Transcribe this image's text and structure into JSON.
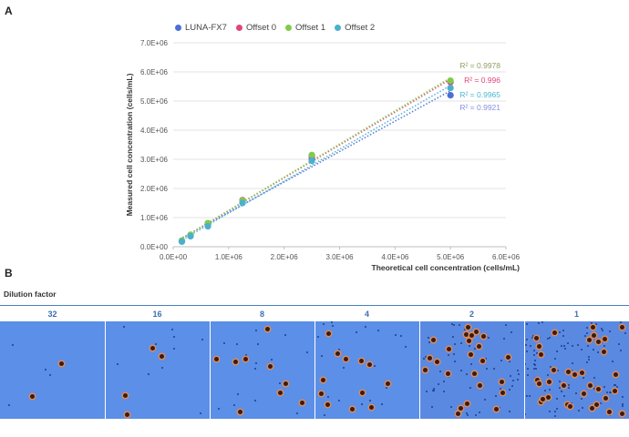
{
  "panel_a_label": "A",
  "panel_b_label": "B",
  "chart_data": {
    "type": "scatter",
    "xlabel": "Theoretical cell  concentration (cells/mL)",
    "ylabel": "Measured cell concentration (cells/mL)",
    "xlim": [
      0,
      6000000
    ],
    "ylim": [
      0,
      7000000
    ],
    "x_ticks": [
      "0.0E+00",
      "1.0E+06",
      "2.0E+06",
      "3.0E+06",
      "4.0E+06",
      "5.0E+06",
      "6.0E+06"
    ],
    "y_ticks": [
      "0.0E+00",
      "1.0E+06",
      "2.0E+06",
      "3.0E+06",
      "4.0E+06",
      "5.0E+06",
      "6.0E+06",
      "7.0E+06"
    ],
    "grid": true,
    "legend_position": "top",
    "series": [
      {
        "name": "LUNA-FX7",
        "color": "#4a6fd8",
        "x": [
          156250,
          312500,
          625000,
          1250000,
          2500000,
          5000000
        ],
        "y": [
          185000,
          370000,
          760000,
          1550000,
          3020000,
          5200000
        ],
        "r2": "R² = 0.9921",
        "r2_color": "#8a8fe0"
      },
      {
        "name": "Offset 0",
        "color": "#e0457b",
        "x": [
          156250,
          312500,
          625000,
          1250000,
          2500000,
          5000000
        ],
        "y": [
          200000,
          400000,
          800000,
          1600000,
          3100000,
          5650000
        ],
        "r2": "R² = 0.996",
        "r2_color": "#e0457b"
      },
      {
        "name": "Offset 1",
        "color": "#7fcc4a",
        "x": [
          156250,
          312500,
          625000,
          1250000,
          2500000,
          5000000
        ],
        "y": [
          210000,
          410000,
          810000,
          1580000,
          3150000,
          5700000
        ],
        "r2": "R² = 0.9978",
        "r2_color": "#8fa060"
      },
      {
        "name": "Offset 2",
        "color": "#4ab0cf",
        "x": [
          156250,
          312500,
          625000,
          1250000,
          2500000,
          5000000
        ],
        "y": [
          175000,
          360000,
          700000,
          1500000,
          2950000,
          5450000
        ],
        "r2": "R² = 0.9965",
        "r2_color": "#4ab8cf"
      }
    ]
  },
  "dilution": {
    "title": "Dilution factor",
    "factors": [
      "32",
      "16",
      "8",
      "4",
      "2",
      "1"
    ]
  }
}
